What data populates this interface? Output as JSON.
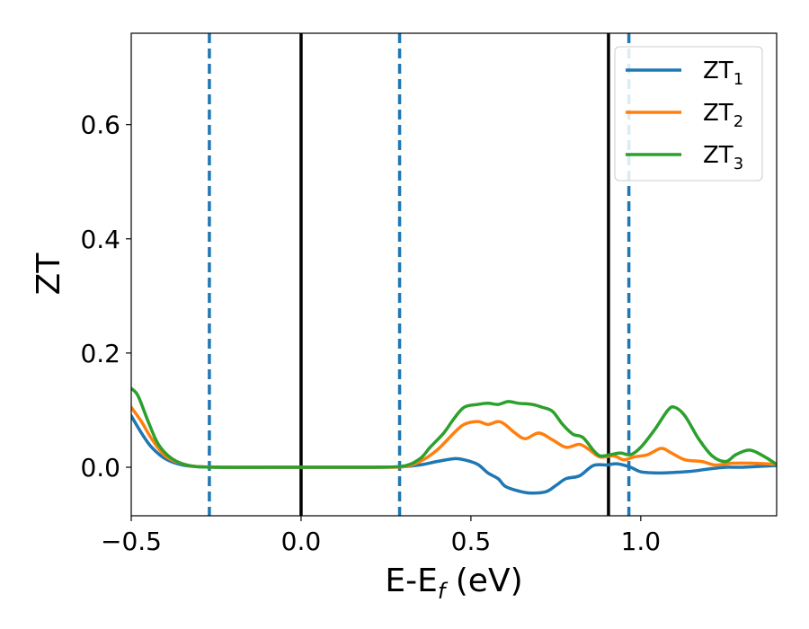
{
  "chart_data": {
    "type": "line",
    "xlabel": "E-E",
    "xlabel_sub": "f",
    "xlabel_unit": " (eV)",
    "ylabel": "ZT",
    "xlim": [
      -0.5,
      1.4
    ],
    "ylim": [
      -0.085,
      0.76
    ],
    "xticks": [
      -0.5,
      0.0,
      0.5,
      1.0
    ],
    "xtick_labels": [
      "−0.5",
      "0.0",
      "0.5",
      "1.0"
    ],
    "yticks": [
      0.0,
      0.2,
      0.4,
      0.6
    ],
    "ytick_labels": [
      "0.0",
      "0.2",
      "0.4",
      "0.6"
    ],
    "grid": false,
    "legend": "top-right",
    "vlines_solid": [
      0.0,
      0.905
    ],
    "vlines_dashed": [
      -0.27,
      0.29,
      0.965
    ],
    "colors": {
      "zt1": "#1f77b4",
      "zt2": "#ff7f0e",
      "zt3": "#2ca02c",
      "ref_lines": "#000000",
      "dashed_lines": "#1f77b4"
    },
    "series": [
      {
        "name": "ZT",
        "sub": "1",
        "color": "#1f77b4",
        "points": [
          [
            -0.5,
            0.09
          ],
          [
            -0.47,
            0.06
          ],
          [
            -0.44,
            0.035
          ],
          [
            -0.4,
            0.015
          ],
          [
            -0.35,
            0.004
          ],
          [
            -0.3,
            0.001
          ],
          [
            -0.2,
            0.0
          ],
          [
            0.0,
            0.0
          ],
          [
            0.2,
            0.0
          ],
          [
            0.3,
            0.001
          ],
          [
            0.35,
            0.004
          ],
          [
            0.4,
            0.01
          ],
          [
            0.45,
            0.015
          ],
          [
            0.48,
            0.013
          ],
          [
            0.52,
            0.005
          ],
          [
            0.55,
            -0.01
          ],
          [
            0.58,
            -0.02
          ],
          [
            0.6,
            -0.033
          ],
          [
            0.63,
            -0.04
          ],
          [
            0.67,
            -0.045
          ],
          [
            0.72,
            -0.043
          ],
          [
            0.75,
            -0.032
          ],
          [
            0.78,
            -0.02
          ],
          [
            0.82,
            -0.015
          ],
          [
            0.86,
            0.003
          ],
          [
            0.9,
            0.004
          ],
          [
            0.93,
            0.006
          ],
          [
            0.97,
            0.0
          ],
          [
            1.0,
            -0.008
          ],
          [
            1.05,
            -0.01
          ],
          [
            1.1,
            -0.009
          ],
          [
            1.15,
            -0.007
          ],
          [
            1.2,
            -0.003
          ],
          [
            1.25,
            0.0
          ],
          [
            1.3,
            0.0
          ],
          [
            1.4,
            0.003
          ]
        ]
      },
      {
        "name": "ZT",
        "sub": "2",
        "color": "#ff7f0e",
        "points": [
          [
            -0.5,
            0.105
          ],
          [
            -0.47,
            0.08
          ],
          [
            -0.44,
            0.05
          ],
          [
            -0.4,
            0.02
          ],
          [
            -0.35,
            0.006
          ],
          [
            -0.3,
            0.001
          ],
          [
            -0.2,
            0.0
          ],
          [
            0.0,
            0.0
          ],
          [
            0.2,
            0.0
          ],
          [
            0.3,
            0.001
          ],
          [
            0.35,
            0.01
          ],
          [
            0.4,
            0.03
          ],
          [
            0.45,
            0.06
          ],
          [
            0.48,
            0.075
          ],
          [
            0.52,
            0.08
          ],
          [
            0.55,
            0.075
          ],
          [
            0.58,
            0.08
          ],
          [
            0.6,
            0.075
          ],
          [
            0.63,
            0.06
          ],
          [
            0.66,
            0.05
          ],
          [
            0.7,
            0.06
          ],
          [
            0.74,
            0.048
          ],
          [
            0.78,
            0.035
          ],
          [
            0.82,
            0.04
          ],
          [
            0.85,
            0.03
          ],
          [
            0.88,
            0.018
          ],
          [
            0.92,
            0.02
          ],
          [
            0.95,
            0.013
          ],
          [
            0.98,
            0.018
          ],
          [
            1.02,
            0.022
          ],
          [
            1.06,
            0.033
          ],
          [
            1.09,
            0.025
          ],
          [
            1.13,
            0.013
          ],
          [
            1.18,
            0.01
          ],
          [
            1.22,
            0.004
          ],
          [
            1.27,
            0.007
          ],
          [
            1.33,
            0.007
          ],
          [
            1.4,
            0.005
          ]
        ]
      },
      {
        "name": "ZT",
        "sub": "3",
        "color": "#2ca02c",
        "points": [
          [
            -0.5,
            0.138
          ],
          [
            -0.48,
            0.125
          ],
          [
            -0.45,
            0.08
          ],
          [
            -0.42,
            0.04
          ],
          [
            -0.38,
            0.015
          ],
          [
            -0.33,
            0.003
          ],
          [
            -0.25,
            0.0
          ],
          [
            0.0,
            0.0
          ],
          [
            0.2,
            0.0
          ],
          [
            0.3,
            0.002
          ],
          [
            0.35,
            0.015
          ],
          [
            0.38,
            0.035
          ],
          [
            0.42,
            0.06
          ],
          [
            0.45,
            0.085
          ],
          [
            0.48,
            0.105
          ],
          [
            0.52,
            0.11
          ],
          [
            0.55,
            0.112
          ],
          [
            0.58,
            0.11
          ],
          [
            0.61,
            0.115
          ],
          [
            0.64,
            0.112
          ],
          [
            0.68,
            0.11
          ],
          [
            0.71,
            0.105
          ],
          [
            0.74,
            0.098
          ],
          [
            0.77,
            0.075
          ],
          [
            0.8,
            0.058
          ],
          [
            0.83,
            0.052
          ],
          [
            0.86,
            0.03
          ],
          [
            0.88,
            0.02
          ],
          [
            0.91,
            0.022
          ],
          [
            0.94,
            0.025
          ],
          [
            0.97,
            0.022
          ],
          [
            1.0,
            0.035
          ],
          [
            1.04,
            0.065
          ],
          [
            1.08,
            0.1
          ],
          [
            1.1,
            0.105
          ],
          [
            1.13,
            0.09
          ],
          [
            1.17,
            0.05
          ],
          [
            1.21,
            0.02
          ],
          [
            1.25,
            0.01
          ],
          [
            1.28,
            0.022
          ],
          [
            1.32,
            0.03
          ],
          [
            1.36,
            0.02
          ],
          [
            1.4,
            0.005
          ]
        ]
      }
    ]
  }
}
